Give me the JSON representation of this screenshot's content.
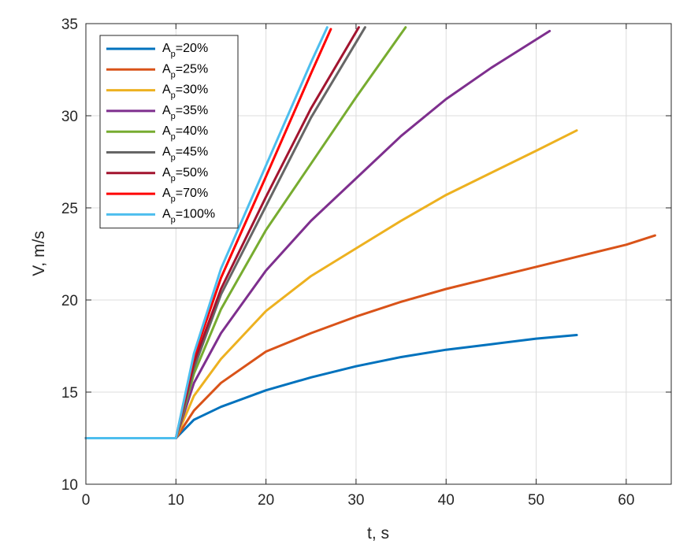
{
  "chart_data": {
    "type": "line",
    "title": "",
    "xlabel": "t, s",
    "ylabel": "V, m/s",
    "xlim": [
      0,
      65
    ],
    "ylim": [
      10,
      35
    ],
    "xticks": [
      0,
      10,
      20,
      30,
      40,
      50,
      60
    ],
    "yticks": [
      10,
      15,
      20,
      25,
      30,
      35
    ],
    "grid": true,
    "legend_position": "top-left",
    "series": [
      {
        "name": "Ap=20%",
        "label_main": "A",
        "label_sub": "p",
        "label_rest": "=20%",
        "color": "#0072BD",
        "x": [
          0,
          10,
          12,
          15,
          20,
          25,
          30,
          35,
          40,
          45,
          50,
          54.5
        ],
        "y": [
          12.5,
          12.5,
          13.5,
          14.2,
          15.1,
          15.8,
          16.4,
          16.9,
          17.3,
          17.6,
          17.9,
          18.1
        ]
      },
      {
        "name": "Ap=25%",
        "label_main": "A",
        "label_sub": "p",
        "label_rest": "=25%",
        "color": "#D95319",
        "x": [
          0,
          10,
          12,
          15,
          20,
          25,
          30,
          35,
          40,
          45,
          50,
          55,
          60,
          63.2
        ],
        "y": [
          12.5,
          12.5,
          14.0,
          15.5,
          17.2,
          18.2,
          19.1,
          19.9,
          20.6,
          21.2,
          21.8,
          22.4,
          23.0,
          23.5
        ]
      },
      {
        "name": "Ap=30%",
        "label_main": "A",
        "label_sub": "p",
        "label_rest": "=30%",
        "color": "#EDB120",
        "x": [
          0,
          10,
          12,
          15,
          20,
          25,
          30,
          35,
          40,
          45,
          50,
          54.5
        ],
        "y": [
          12.5,
          12.5,
          14.8,
          16.8,
          19.4,
          21.3,
          22.8,
          24.3,
          25.7,
          26.9,
          28.1,
          29.2
        ]
      },
      {
        "name": "Ap=35%",
        "label_main": "A",
        "label_sub": "p",
        "label_rest": "=35%",
        "color": "#7E2F8E",
        "x": [
          0,
          10,
          12,
          15,
          20,
          25,
          30,
          35,
          40,
          45,
          51.5
        ],
        "y": [
          12.5,
          12.5,
          15.5,
          18.2,
          21.6,
          24.3,
          26.6,
          28.9,
          30.9,
          32.6,
          34.6
        ]
      },
      {
        "name": "Ap=40%",
        "label_main": "A",
        "label_sub": "p",
        "label_rest": "=40%",
        "color": "#77AC30",
        "x": [
          0,
          10,
          12,
          15,
          20,
          25,
          30,
          35.5
        ],
        "y": [
          12.5,
          12.5,
          16.0,
          19.5,
          23.8,
          27.4,
          31.0,
          34.8
        ]
      },
      {
        "name": "Ap=45%",
        "label_main": "A",
        "label_sub": "p",
        "label_rest": "=45%",
        "color": "#666666",
        "x": [
          0,
          10,
          12,
          15,
          20,
          25,
          31
        ],
        "y": [
          12.5,
          12.5,
          16.3,
          20.3,
          25.1,
          29.9,
          34.8
        ]
      },
      {
        "name": "Ap=50%",
        "label_main": "A",
        "label_sub": "p",
        "label_rest": "=50%",
        "color": "#A2142F",
        "x": [
          0,
          10,
          12,
          15,
          20,
          25,
          30.3
        ],
        "y": [
          12.5,
          12.5,
          16.6,
          20.6,
          25.6,
          30.4,
          34.8
        ]
      },
      {
        "name": "Ap=70%",
        "label_main": "A",
        "label_sub": "p",
        "label_rest": "=70%",
        "color": "#FF0000",
        "x": [
          0,
          10,
          12,
          15,
          20,
          25,
          27.2
        ],
        "y": [
          12.5,
          12.5,
          16.9,
          21.2,
          26.7,
          32.3,
          34.7
        ]
      },
      {
        "name": "Ap=100%",
        "label_main": "A",
        "label_sub": "p",
        "label_rest": "=100%",
        "color": "#4DBEEE",
        "x": [
          0,
          10,
          12,
          15,
          20,
          25,
          26.8
        ],
        "y": [
          12.5,
          12.5,
          17.1,
          21.7,
          27.3,
          32.9,
          34.8
        ]
      }
    ]
  }
}
